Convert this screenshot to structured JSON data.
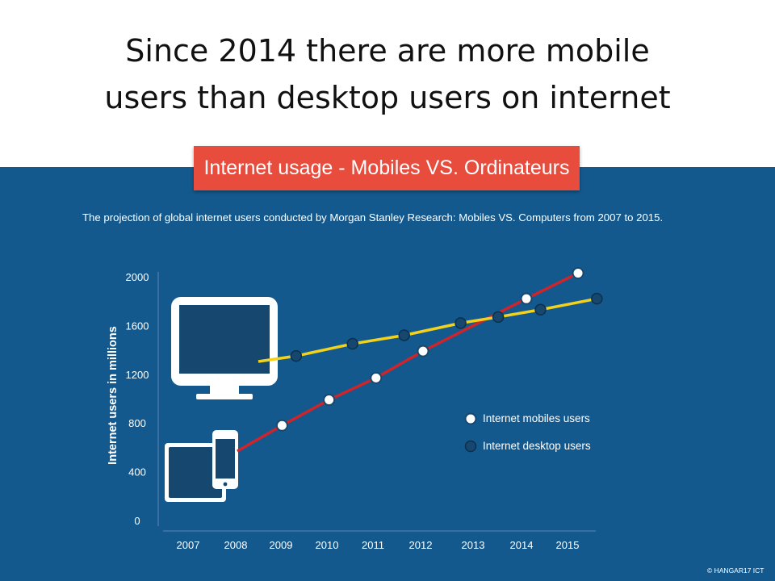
{
  "slide": {
    "title_line1": "Since 2014 there are more mobile",
    "title_line2": "users than desktop users on internet"
  },
  "infographic": {
    "banner": "Internet usage - Mobiles VS. Ordinateurs",
    "subtitle": "The projection of global internet users conducted by Morgan Stanley Research: Mobiles VS. Computers from 2007 to 2015.",
    "copyright": "© HANGAR17 ICT",
    "colors": {
      "panel": "#14598e",
      "banner": "#e84c3d",
      "mobile_line": "#d0242b",
      "desktop_line": "#f2d21b",
      "desktop_marker": "#16486f",
      "mobile_marker": "#ffffff"
    },
    "icons": [
      "desktop-monitor-icon",
      "tablet-icon",
      "smartphone-icon"
    ]
  },
  "chart_data": {
    "type": "line",
    "title": "Internet usage - Mobiles VS. Ordinateurs",
    "ylabel": "Internet users in millions",
    "xlabel": "",
    "ylim": [
      0,
      2000
    ],
    "yticks": [
      0,
      400,
      800,
      1200,
      1600,
      2000
    ],
    "categories": [
      "2007",
      "2008",
      "2009",
      "2010",
      "2011",
      "2012",
      "2013",
      "2014",
      "2015"
    ],
    "grid": false,
    "legend_position": "right",
    "series": [
      {
        "name": "Internet mobiles users",
        "color": "#d0242b",
        "points": [
          {
            "x": 2009,
            "y": 780
          },
          {
            "x": 2010,
            "y": 990
          },
          {
            "x": 2011,
            "y": 1170
          },
          {
            "x": 2012,
            "y": 1390
          },
          {
            "x": 2014.2,
            "y": 1820
          },
          {
            "x": 2015.3,
            "y": 2030
          }
        ]
      },
      {
        "name": "Internet desktop users",
        "color": "#f2d21b",
        "points": [
          {
            "x": 2009.3,
            "y": 1350
          },
          {
            "x": 2010.5,
            "y": 1450
          },
          {
            "x": 2011.6,
            "y": 1520
          },
          {
            "x": 2012.8,
            "y": 1620
          },
          {
            "x": 2013.6,
            "y": 1670
          },
          {
            "x": 2014.5,
            "y": 1730
          },
          {
            "x": 2015.7,
            "y": 1820
          }
        ]
      }
    ]
  }
}
